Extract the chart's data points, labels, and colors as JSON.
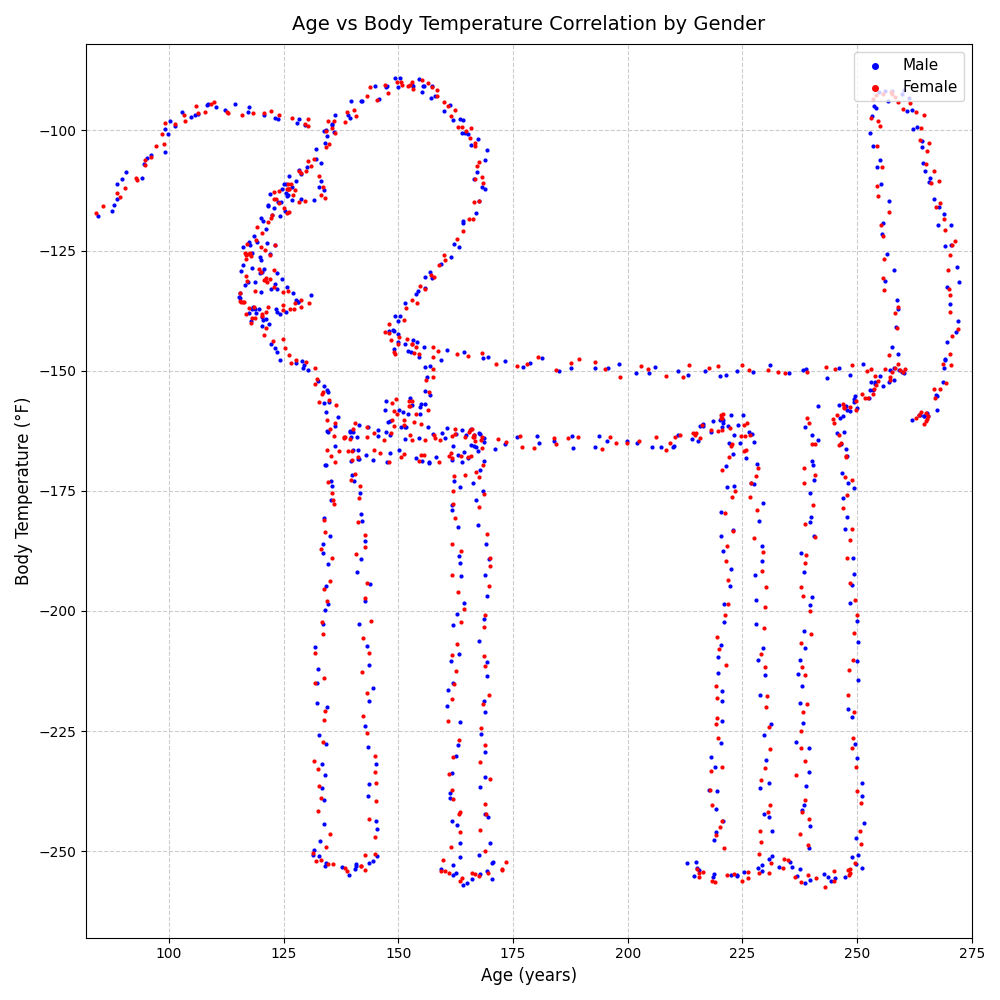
{
  "title": "Age vs Body Temperature Correlation by Gender",
  "xlabel": "Age (years)",
  "ylabel": "Body Temperature (°F)",
  "xlim": [
    82,
    275
  ],
  "ylim": [
    -268,
    -82
  ],
  "male_color": "blue",
  "female_color": "red",
  "dot_size": 4,
  "legend_male": "Male",
  "legend_female": "Female",
  "background_color": "white",
  "grid_color": "#cccccc",
  "grid_style": "--"
}
